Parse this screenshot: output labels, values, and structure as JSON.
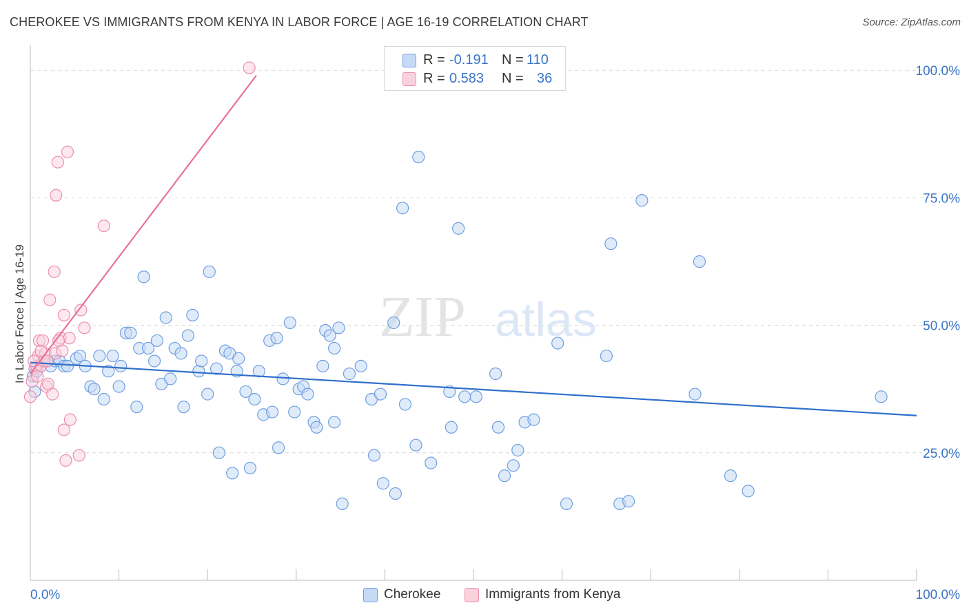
{
  "title": "CHEROKEE VS IMMIGRANTS FROM KENYA IN LABOR FORCE | AGE 16-19 CORRELATION CHART",
  "source": "Source: ZipAtlas.com",
  "watermark": {
    "zip": "ZIP",
    "atlas": "atlas"
  },
  "legend_top": {
    "rows": [
      {
        "r_label": "R =",
        "r_value": "-0.191",
        "n_label": "N =",
        "n_value": "110",
        "color": "#6e9fe0"
      },
      {
        "r_label": "R =",
        "r_value": "0.583",
        "n_label": "N =",
        "n_value": "36",
        "color": "#ec8fab"
      }
    ]
  },
  "legend_bottom": [
    "Cherokee",
    "Immigrants from Kenya"
  ],
  "chart_data": {
    "type": "scatter",
    "xlabel": "",
    "ylabel": "In Labor Force | Age 16-19",
    "xlim": [
      0,
      100
    ],
    "ylim": [
      0,
      103
    ],
    "x_tick_labels": [
      "0.0%",
      "100.0%"
    ],
    "y_ticks": [
      25,
      50,
      75,
      100
    ],
    "y_tick_labels": [
      "25.0%",
      "50.0%",
      "75.0%",
      "100.0%"
    ],
    "colors": {
      "cherokee": "#6e9fe0",
      "cherokee_fill": "#c6daf5",
      "kenya": "#ec8fab",
      "kenya_fill": "#f9d2de",
      "trend_blue": "#2f6fcc",
      "trend_pink": "#e8709a",
      "grid": "#d8d8d8",
      "axis": "#bbbbbb"
    },
    "series": [
      {
        "name": "Cherokee",
        "trend": {
          "x": [
            0,
            100
          ],
          "y": [
            42.7,
            32.3
          ]
        },
        "points": [
          [
            0.3,
            40
          ],
          [
            0.7,
            41
          ],
          [
            0.5,
            37
          ],
          [
            1.2,
            42
          ],
          [
            1.6,
            43
          ],
          [
            2,
            43
          ],
          [
            2.3,
            42
          ],
          [
            2.8,
            43
          ],
          [
            3.3,
            43
          ],
          [
            3.8,
            42
          ],
          [
            4.2,
            42
          ],
          [
            5.2,
            43.5
          ],
          [
            5.6,
            44
          ],
          [
            6.2,
            42
          ],
          [
            6.8,
            38
          ],
          [
            7.2,
            37.5
          ],
          [
            7.8,
            44
          ],
          [
            8.3,
            35.5
          ],
          [
            8.8,
            41
          ],
          [
            9.3,
            44
          ],
          [
            10,
            38
          ],
          [
            10.2,
            42
          ],
          [
            10.8,
            48.5
          ],
          [
            11.3,
            48.5
          ],
          [
            12,
            34
          ],
          [
            12.3,
            45.5
          ],
          [
            12.8,
            59.5
          ],
          [
            13.3,
            45.5
          ],
          [
            14,
            43
          ],
          [
            14.3,
            47
          ],
          [
            14.8,
            38.5
          ],
          [
            15.3,
            51.5
          ],
          [
            15.8,
            39.5
          ],
          [
            16.3,
            45.5
          ],
          [
            17,
            44.5
          ],
          [
            17.3,
            34
          ],
          [
            17.8,
            48
          ],
          [
            18.3,
            52
          ],
          [
            19,
            41
          ],
          [
            19.3,
            43
          ],
          [
            20,
            36.5
          ],
          [
            20.2,
            60.5
          ],
          [
            21,
            41.5
          ],
          [
            21.3,
            25
          ],
          [
            22,
            45
          ],
          [
            22.5,
            44.5
          ],
          [
            22.8,
            21
          ],
          [
            23.3,
            41
          ],
          [
            23.5,
            43.5
          ],
          [
            24.3,
            37
          ],
          [
            24.8,
            22
          ],
          [
            25.3,
            35.5
          ],
          [
            25.8,
            41
          ],
          [
            26.3,
            32.5
          ],
          [
            27,
            47
          ],
          [
            27.3,
            33
          ],
          [
            27.8,
            47.5
          ],
          [
            28,
            26
          ],
          [
            28.5,
            39.5
          ],
          [
            29.3,
            50.5
          ],
          [
            29.8,
            33
          ],
          [
            30.3,
            37.5
          ],
          [
            30.8,
            38
          ],
          [
            31.3,
            36.5
          ],
          [
            32,
            31
          ],
          [
            32.3,
            30
          ],
          [
            33,
            42
          ],
          [
            33.3,
            49
          ],
          [
            33.8,
            48
          ],
          [
            34.3,
            31
          ],
          [
            34.8,
            49.5
          ],
          [
            34.3,
            45.5
          ],
          [
            35.2,
            15
          ],
          [
            36,
            40.5
          ],
          [
            37.3,
            42
          ],
          [
            38.5,
            35.5
          ],
          [
            38.8,
            24.5
          ],
          [
            39.5,
            36.5
          ],
          [
            39.8,
            19
          ],
          [
            41,
            50.5
          ],
          [
            41.2,
            17
          ],
          [
            42,
            73
          ],
          [
            43.8,
            83
          ],
          [
            42.3,
            34.5
          ],
          [
            43.5,
            26.5
          ],
          [
            45.2,
            23
          ],
          [
            47.3,
            37
          ],
          [
            47.5,
            30
          ],
          [
            48.3,
            69
          ],
          [
            49,
            36
          ],
          [
            50.3,
            36
          ],
          [
            52.5,
            40.5
          ],
          [
            52.8,
            30
          ],
          [
            53.5,
            20.5
          ],
          [
            54.5,
            22.5
          ],
          [
            55,
            25.5
          ],
          [
            55.8,
            31
          ],
          [
            56.8,
            31.5
          ],
          [
            59.5,
            46.5
          ],
          [
            60.5,
            15
          ],
          [
            65,
            44
          ],
          [
            65.5,
            66
          ],
          [
            66.5,
            15
          ],
          [
            67.5,
            15.5
          ],
          [
            69,
            74.5
          ],
          [
            75,
            36.5
          ],
          [
            75.5,
            62.5
          ],
          [
            79,
            20.5
          ],
          [
            81,
            17.5
          ],
          [
            96,
            36
          ]
        ]
      },
      {
        "name": "Immigrants from Kenya",
        "trend": {
          "x": [
            0,
            25.5
          ],
          "y": [
            40.5,
            99
          ]
        },
        "points": [
          [
            0,
            36
          ],
          [
            0.2,
            39
          ],
          [
            0.5,
            41.5
          ],
          [
            0.7,
            42
          ],
          [
            0.9,
            44
          ],
          [
            1,
            47
          ],
          [
            1.2,
            42
          ],
          [
            1.5,
            43
          ],
          [
            1.7,
            44.5
          ],
          [
            1.8,
            38
          ],
          [
            2,
            38.5
          ],
          [
            2.2,
            55
          ],
          [
            2.5,
            36.5
          ],
          [
            2.8,
            44.5
          ],
          [
            2.7,
            60.5
          ],
          [
            2.9,
            75.5
          ],
          [
            3.1,
            82
          ],
          [
            3.4,
            47.5
          ],
          [
            3.6,
            45
          ],
          [
            3.8,
            29.5
          ],
          [
            3.8,
            52
          ],
          [
            4,
            23.5
          ],
          [
            4.2,
            84
          ],
          [
            4.4,
            47.5
          ],
          [
            4.5,
            31.5
          ],
          [
            5.5,
            24.5
          ],
          [
            5.7,
            53
          ],
          [
            6.1,
            49.5
          ],
          [
            8.3,
            69.5
          ],
          [
            24.7,
            100.5
          ],
          [
            1.2,
            45
          ],
          [
            0.8,
            40
          ],
          [
            1.9,
            43
          ],
          [
            0.4,
            43
          ],
          [
            3.2,
            47
          ],
          [
            1.4,
            47
          ]
        ]
      }
    ]
  }
}
